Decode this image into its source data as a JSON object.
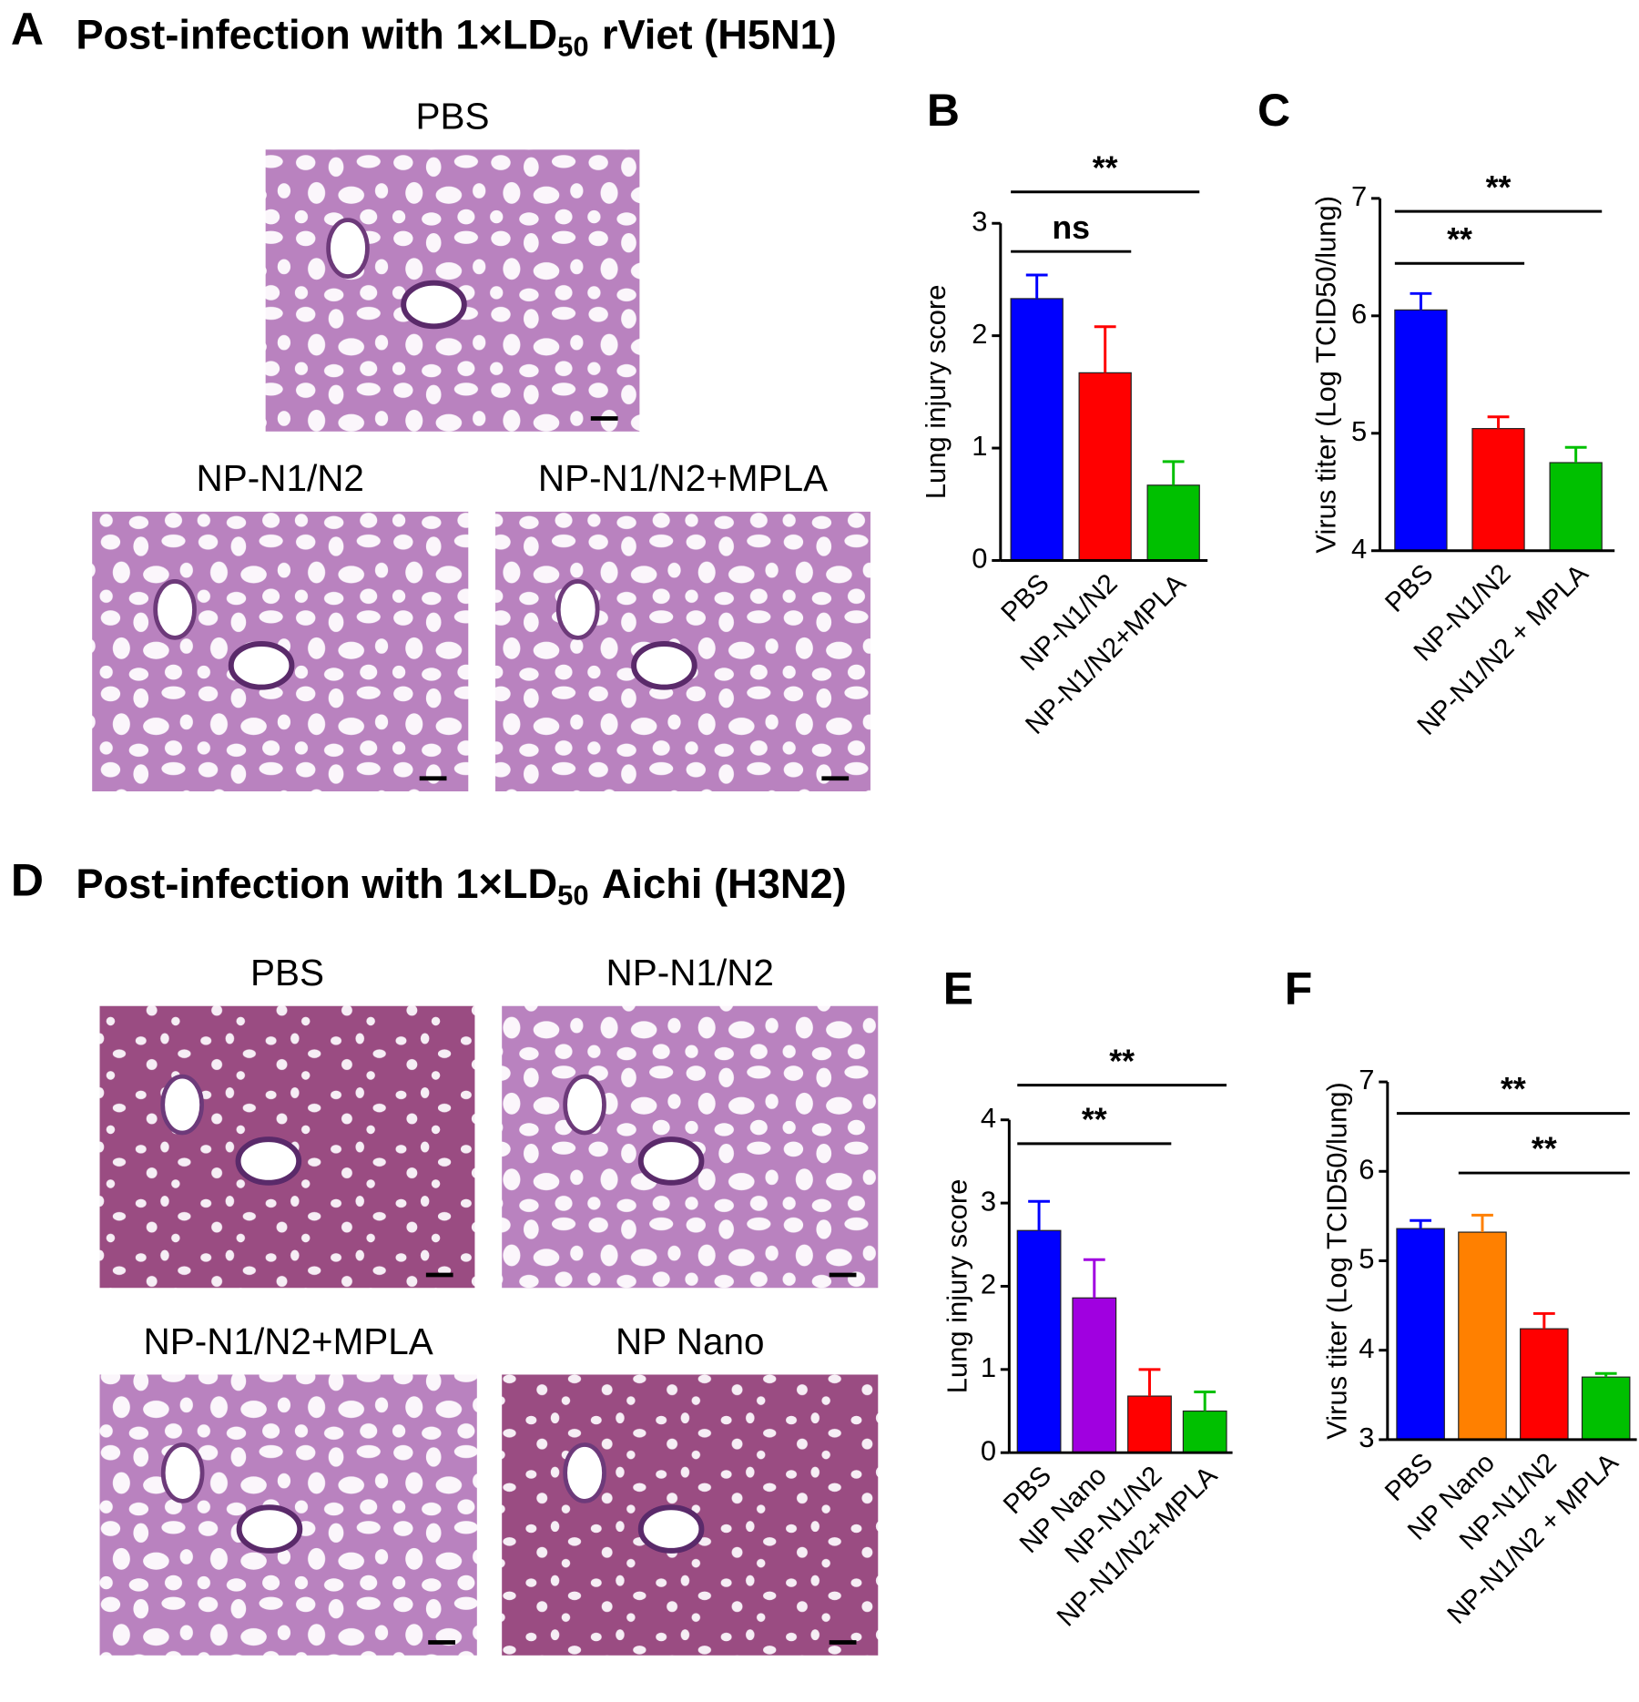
{
  "panels": [
    {
      "letter": "A",
      "title": {
        "text": "Post-infection with 1×LD",
        "subscript": "50",
        "suffix": "rViet (H5N1)"
      },
      "images": [
        {
          "label": "PBS"
        },
        {
          "label": "NP-N1/N2"
        },
        {
          "label": "NP-N1/N2+MPLA"
        }
      ]
    },
    {
      "letter": "D",
      "title": {
        "text": "Post-infection with 1×LD",
        "subscript": "50",
        "suffix": "Aichi (H3N2)"
      },
      "images": [
        {
          "label": "PBS"
        },
        {
          "label": "NP-N1/N2"
        },
        {
          "label": "NP-N1/N2+MPLA"
        },
        {
          "label": "NP Nano"
        }
      ]
    }
  ],
  "chart_data": [
    {
      "letter": "B",
      "type": "bar",
      "ylabel": "Lung injury score",
      "categories": [
        "PBS",
        "NP-N1/N2",
        "NP-N1/N2+MPLA"
      ],
      "values": [
        2.33,
        1.67,
        0.67
      ],
      "errors": [
        0.21,
        0.41,
        0.21
      ],
      "colors": [
        "#0000ff",
        "#ff0000",
        "#00c000"
      ],
      "ylim": [
        0,
        3
      ],
      "yticks": [
        0,
        1,
        2,
        3
      ],
      "annotations": [
        "ns",
        "**"
      ]
    },
    {
      "letter": "C",
      "type": "bar",
      "ylabel": "Virus titer (Log TCID50/lung)",
      "categories": [
        "PBS",
        "NP-N1/N2",
        "NP-N1/N2 + MPLA"
      ],
      "values": [
        6.05,
        5.04,
        4.75
      ],
      "errors": [
        0.14,
        0.1,
        0.13
      ],
      "colors": [
        "#0000ff",
        "#ff0000",
        "#00c000"
      ],
      "ylim": [
        4,
        7
      ],
      "yticks": [
        4,
        5,
        6,
        7
      ],
      "annotations": [
        "**",
        "**"
      ]
    },
    {
      "letter": "E",
      "type": "bar",
      "ylabel": "Lung injury score",
      "categories": [
        "PBS",
        "NP Nano",
        "NP-N1/N2",
        "NP-N1/N2+MPLA"
      ],
      "values": [
        2.67,
        1.86,
        0.68,
        0.5
      ],
      "errors": [
        0.35,
        0.46,
        0.32,
        0.23
      ],
      "colors": [
        "#0000ff",
        "#a000e0",
        "#ff0000",
        "#00c000"
      ],
      "ylim": [
        0,
        4
      ],
      "yticks": [
        0,
        1,
        2,
        3,
        4
      ],
      "annotations": [
        "**",
        "**"
      ]
    },
    {
      "letter": "F",
      "type": "bar",
      "ylabel": "Virus titer (Log TCID50/lung)",
      "categories": [
        "PBS",
        "NP Nano",
        "NP-N1/N2",
        "NP-N1/N2 + MPLA"
      ],
      "values": [
        5.36,
        5.32,
        4.24,
        3.7
      ],
      "errors": [
        0.09,
        0.19,
        0.17,
        0.04
      ],
      "colors": [
        "#0000ff",
        "#ff8000",
        "#ff0000",
        "#00c000"
      ],
      "ylim": [
        3,
        7
      ],
      "yticks": [
        3,
        4,
        5,
        6,
        7
      ],
      "annotations": [
        "**",
        "**"
      ]
    }
  ]
}
